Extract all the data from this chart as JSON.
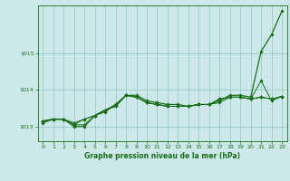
{
  "background_color": "#cce8e8",
  "grid_color": "#99cccc",
  "line_color": "#1a6e1a",
  "marker_color": "#1a6e1a",
  "xlabel": "Graphe pression niveau de la mer (hPa)",
  "xlim": [
    -0.5,
    23.5
  ],
  "ylim": [
    1012.6,
    1016.3
  ],
  "yticks": [
    1013,
    1014,
    1015
  ],
  "xticks": [
    0,
    1,
    2,
    3,
    4,
    5,
    6,
    7,
    8,
    9,
    10,
    11,
    12,
    13,
    14,
    15,
    16,
    17,
    18,
    19,
    20,
    21,
    22,
    23
  ],
  "series": [
    [
      1013.1,
      1013.2,
      1013.2,
      1013.0,
      1013.0,
      1013.3,
      1013.4,
      1013.6,
      1013.85,
      1013.85,
      1013.7,
      1013.65,
      1013.6,
      1013.6,
      1013.55,
      1013.6,
      1013.6,
      1013.7,
      1013.85,
      1013.85,
      1013.8,
      1015.05,
      1015.5,
      1016.15
    ],
    [
      1013.15,
      1013.2,
      1013.2,
      1013.05,
      1013.05,
      1013.3,
      1013.45,
      1013.55,
      1013.85,
      1013.8,
      1013.65,
      1013.6,
      1013.55,
      1013.55,
      1013.55,
      1013.6,
      1013.6,
      1013.65,
      1013.8,
      1013.8,
      1013.75,
      1014.25,
      1013.7,
      1013.82
    ],
    [
      1013.15,
      1013.2,
      1013.2,
      1013.05,
      1013.2,
      1013.3,
      1013.45,
      1013.55,
      1013.85,
      1013.8,
      1013.65,
      1013.6,
      1013.55,
      1013.55,
      1013.55,
      1013.6,
      1013.6,
      1013.75,
      1013.8,
      1013.8,
      1013.75,
      1013.8,
      1013.75,
      1013.82
    ],
    [
      1013.15,
      1013.2,
      1013.2,
      1013.1,
      1013.2,
      1013.3,
      1013.45,
      1013.6,
      1013.85,
      1013.8,
      1013.65,
      1013.6,
      1013.55,
      1013.55,
      1013.55,
      1013.6,
      1013.6,
      1013.75,
      1013.8,
      1013.8,
      1013.75,
      1013.8,
      1013.75,
      1013.82
    ]
  ]
}
